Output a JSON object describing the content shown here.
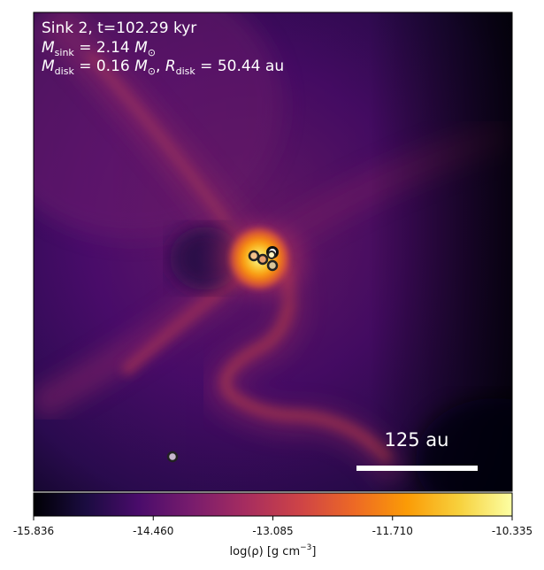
{
  "panel": {
    "title_line": "Sink 2, t=102.29 kyr",
    "msink": {
      "sym": "M",
      "sub": "sink",
      "eq": " = 2.14 ",
      "unit": "M",
      "unit_sub": "⊙"
    },
    "mdisk": {
      "sym": "M",
      "sub": "disk",
      "eq": " = 0.16 ",
      "unit": "M",
      "unit_sub": "⊙"
    },
    "rdisk": {
      "sep": ", ",
      "sym": "R",
      "sub": "disk",
      "eq": " = 50.44 au"
    }
  },
  "scale_bar": {
    "label": "125 au"
  },
  "colorbar": {
    "ticks": [
      "-15.836",
      "-14.460",
      "-13.085",
      "-11.710",
      "-10.335"
    ],
    "label_pre": "log(ρ) [g cm",
    "label_sup": "−3",
    "label_post": "]",
    "colormap": "inferno",
    "colors": [
      "#000004",
      "#1b0c41",
      "#4a0c6b",
      "#781c6d",
      "#a52c60",
      "#cf4446",
      "#ed6925",
      "#fb9b06",
      "#f7d13d",
      "#fcffa4"
    ]
  },
  "sinks": {
    "count": 6,
    "marker": "ring-circle"
  }
}
